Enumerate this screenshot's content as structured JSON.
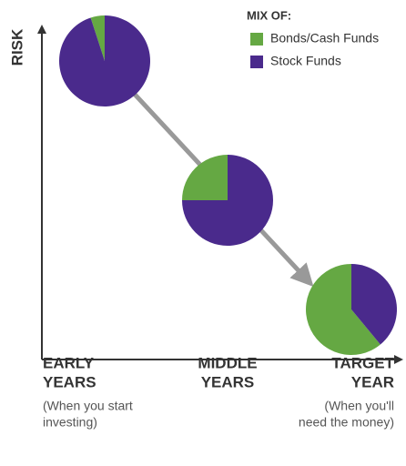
{
  "y_label": "RISK",
  "legend_title": "MIX OF:",
  "chart_data": [
    {
      "type": "pie",
      "categories": [
        "Bonds/Cash Funds",
        "Stock Funds"
      ],
      "values": [
        5,
        95
      ],
      "colors": [
        "#65a843",
        "#4a2a8c"
      ],
      "title": [
        "EARLY",
        "YEARS"
      ],
      "subtitle": [
        "(When you start",
        "investing)"
      ]
    },
    {
      "type": "pie",
      "categories": [
        "Bonds/Cash Funds",
        "Stock Funds"
      ],
      "values": [
        25,
        75
      ],
      "colors": [
        "#65a843",
        "#4a2a8c"
      ],
      "title": [
        "MIDDLE",
        "YEARS"
      ]
    },
    {
      "type": "pie",
      "categories": [
        "Bonds/Cash Funds",
        "Stock Funds"
      ],
      "values": [
        61,
        39
      ],
      "colors": [
        "#65a843",
        "#4a2a8c"
      ],
      "title": [
        "TARGET",
        "YEAR"
      ],
      "subtitle": [
        "(When you'll",
        "need the money)"
      ]
    }
  ]
}
